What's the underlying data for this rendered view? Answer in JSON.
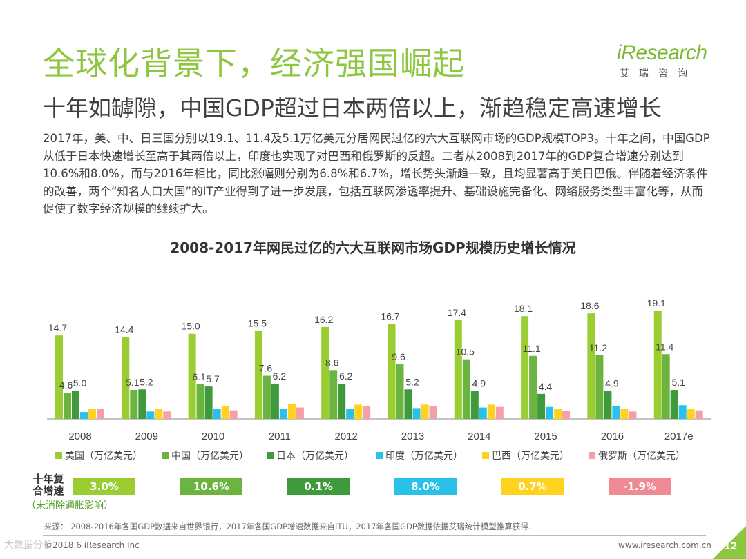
{
  "header": {
    "title": "全球化背景下，经济强国崛起",
    "subtitle": "十年如罅隙，中国GDP超过日本两倍以上，渐趋稳定高速增长",
    "logo_text": "iResearch",
    "logo_cn": "艾瑞咨询"
  },
  "paragraph": "2017年，美、中、日三国分别以19.1、11.4及5.1万亿美元分居网民过亿的六大互联网市场的GDP规模TOP3。十年之间，中国GDP从低于日本快速增长至高于其两倍以上，印度也实现了对巴西和俄罗斯的反超。二者从2008到2017年的GDP复合增速分别达到10.6%和8.0%，而与2016年相比，同比涨幅则分别为6.8%和6.7%，增长势头渐趋一致，且均显著高于美日巴俄。伴随着经济条件的改善，两个“知名人口大国”的IT产业得到了进一步发展，包括互联网渗透率提升、基础设施完备化、网络服务类型丰富化等，从而促使了数字经济规模的继续扩大。",
  "chart_data": {
    "type": "bar",
    "title": "2008-2017年网民过亿的六大互联网市场GDP规模历史增长情况",
    "categories": [
      "2008",
      "2009",
      "2010",
      "2011",
      "2012",
      "2013",
      "2014",
      "2015",
      "2016",
      "2017e"
    ],
    "ylim": [
      0,
      20
    ],
    "series": [
      {
        "name": "美国（万亿美元）",
        "color": "#9acd32",
        "values": [
          14.7,
          14.4,
          15.0,
          15.5,
          16.2,
          16.7,
          17.4,
          18.1,
          18.6,
          19.1
        ],
        "labels": true
      },
      {
        "name": "中国（万亿美元）",
        "color": "#6ab43f",
        "values": [
          4.6,
          5.1,
          6.1,
          7.6,
          8.6,
          9.6,
          10.5,
          11.1,
          11.2,
          11.4
        ],
        "labels": true
      },
      {
        "name": "日本（万亿美元）",
        "color": "#3e9a3a",
        "values": [
          5.0,
          5.2,
          5.7,
          6.2,
          6.2,
          5.2,
          4.9,
          4.4,
          4.9,
          5.1
        ],
        "labels": true
      },
      {
        "name": "印度（万亿美元）",
        "color": "#29c1ea",
        "values": [
          1.2,
          1.3,
          1.7,
          1.8,
          1.8,
          1.9,
          2.0,
          2.1,
          2.3,
          2.4
        ],
        "labels": false
      },
      {
        "name": "巴西（万亿美元）",
        "color": "#ffd21f",
        "values": [
          1.7,
          1.7,
          2.2,
          2.6,
          2.5,
          2.5,
          2.5,
          1.8,
          1.8,
          1.8
        ],
        "labels": false
      },
      {
        "name": "俄罗斯（万亿美元）",
        "color": "#f4a0a6",
        "values": [
          1.7,
          1.3,
          1.5,
          2.0,
          2.2,
          2.3,
          2.1,
          1.4,
          1.3,
          1.5
        ],
        "labels": false
      }
    ]
  },
  "cagr": {
    "label_line1": "十年复",
    "label_line2": "合增速",
    "note": "（未消除通胀影响）",
    "items": [
      {
        "value": "3.0%",
        "color": "#9acd32"
      },
      {
        "value": "10.6%",
        "color": "#6ab43f"
      },
      {
        "value": "0.1%",
        "color": "#3e9a3a"
      },
      {
        "value": "8.0%",
        "color": "#29c1ea"
      },
      {
        "value": "0.7%",
        "color": "#ffd21f"
      },
      {
        "value": "-1.9%",
        "color": "#f08a92"
      }
    ]
  },
  "footer": {
    "source": "来源： 2008-2016年各国GDP数据来自世界银行，2017年各国GDP增速数据来自ITU，2017年各国GDP数据依据艾瑞统计模型推算获得.",
    "copyright": "©2018.6 iResearch Inc",
    "site": "www.iresearch.com.cn",
    "page": "12",
    "watermark": "大数据分析"
  }
}
